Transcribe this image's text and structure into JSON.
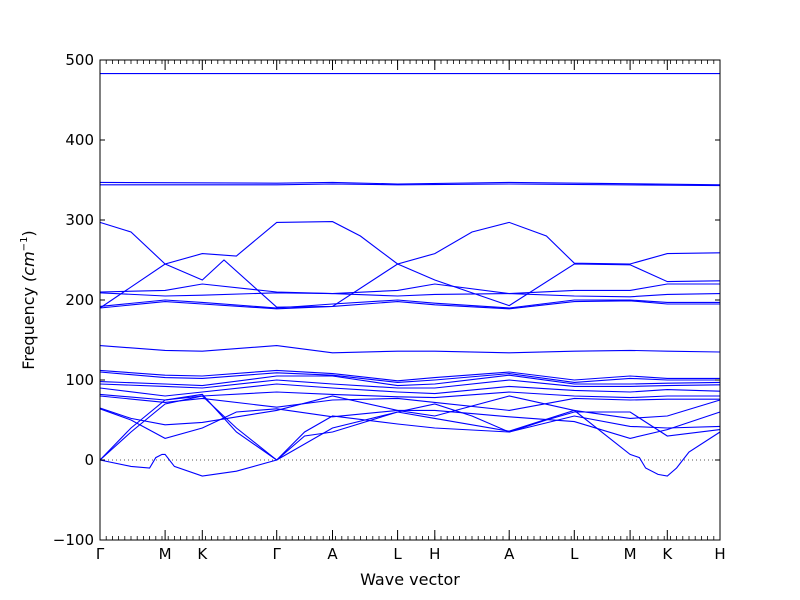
{
  "chart_data": {
    "type": "line",
    "title": "",
    "xlabel": "Wave vector",
    "ylabel_text": "Frequency",
    "ylabel_unit": "(cm",
    "ylabel_exp": "−1",
    "ylabel_close": ")",
    "ylim": [
      -100,
      500
    ],
    "yticks": [
      -100,
      0,
      100,
      200,
      300,
      400,
      500
    ],
    "ytick_labels": [
      "−100",
      "0",
      "100",
      "200",
      "300",
      "400",
      "500"
    ],
    "x_path_points": [
      {
        "label": "Γ",
        "x": 0.0
      },
      {
        "label": "M",
        "x": 0.105
      },
      {
        "label": "K",
        "x": 0.165
      },
      {
        "label": "Γ",
        "x": 0.285
      },
      {
        "label": "A",
        "x": 0.375
      },
      {
        "label": "L",
        "x": 0.48
      },
      {
        "label": "H",
        "x": 0.54
      },
      {
        "label": "A",
        "x": 0.66
      },
      {
        "label": "L",
        "x": 0.765
      },
      {
        "label": "M",
        "x": 0.855
      },
      {
        "label": "K",
        "x": 0.915
      },
      {
        "label": "H",
        "x": 1.0
      }
    ],
    "xlim": [
      0,
      1
    ],
    "zero_line": true,
    "line_color": "#0000ff",
    "series": [
      {
        "x": [
          0,
          1
        ],
        "y": [
          483,
          483
        ]
      },
      {
        "x": [
          0,
          0.285,
          0.375,
          0.48,
          0.66,
          1
        ],
        "y": [
          347,
          346,
          347,
          345,
          347,
          344
        ]
      },
      {
        "x": [
          0,
          0.285,
          0.375,
          0.48,
          0.66,
          1
        ],
        "y": [
          344,
          344,
          345,
          344,
          345,
          343
        ]
      },
      {
        "x": [
          0,
          0.05,
          0.105,
          0.165,
          0.22,
          0.285,
          0.375,
          0.42,
          0.48,
          0.54,
          0.6,
          0.66,
          0.72,
          0.765,
          0.855,
          0.915,
          1
        ],
        "y": [
          297,
          285,
          245,
          258,
          255,
          297,
          298,
          280,
          245,
          258,
          285,
          297,
          280,
          246,
          245,
          258,
          259
        ]
      },
      {
        "x": [
          0,
          0.105,
          0.165,
          0.2,
          0.285,
          0.375,
          0.48,
          0.54,
          0.66,
          0.765,
          0.855,
          0.915,
          1
        ],
        "y": [
          190,
          245,
          225,
          250,
          191,
          192,
          245,
          225,
          193,
          245,
          244,
          223,
          224
        ]
      },
      {
        "x": [
          0,
          0.105,
          0.165,
          0.285,
          0.375,
          0.48,
          0.54,
          0.66,
          0.765,
          0.855,
          0.915,
          1
        ],
        "y": [
          210,
          212,
          220,
          210,
          208,
          212,
          220,
          208,
          212,
          212,
          220,
          220
        ]
      },
      {
        "x": [
          0,
          0.105,
          0.165,
          0.285,
          0.375,
          0.48,
          0.54,
          0.66,
          0.765,
          0.855,
          0.915,
          1
        ],
        "y": [
          209,
          205,
          206,
          209,
          208,
          205,
          207,
          208,
          205,
          204,
          207,
          208
        ]
      },
      {
        "x": [
          0,
          0.105,
          0.165,
          0.285,
          0.375,
          0.48,
          0.54,
          0.66,
          0.765,
          0.855,
          0.915,
          1
        ],
        "y": [
          192,
          200,
          197,
          190,
          195,
          200,
          196,
          190,
          200,
          200,
          197,
          197
        ]
      },
      {
        "x": [
          0,
          0.105,
          0.165,
          0.285,
          0.375,
          0.48,
          0.54,
          0.66,
          0.765,
          0.855,
          0.915,
          1
        ],
        "y": [
          190,
          198,
          195,
          189,
          192,
          198,
          194,
          189,
          198,
          199,
          195,
          195
        ]
      },
      {
        "x": [
          0,
          0.105,
          0.165,
          0.285,
          0.375,
          0.48,
          0.54,
          0.66,
          0.765,
          0.855,
          0.915,
          1
        ],
        "y": [
          143,
          137,
          136,
          143,
          134,
          136,
          136,
          134,
          136,
          137,
          136,
          135
        ]
      },
      {
        "x": [
          0,
          0.105,
          0.165,
          0.285,
          0.375,
          0.48,
          0.54,
          0.66,
          0.765,
          0.855,
          0.915,
          1
        ],
        "y": [
          112,
          106,
          105,
          112,
          108,
          99,
          103,
          110,
          100,
          105,
          102,
          102
        ]
      },
      {
        "x": [
          0,
          0.105,
          0.165,
          0.285,
          0.375,
          0.48,
          0.54,
          0.66,
          0.765,
          0.855,
          0.915,
          1
        ],
        "y": [
          110,
          103,
          102,
          109,
          106,
          97,
          100,
          108,
          97,
          102,
          100,
          100
        ]
      },
      {
        "x": [
          0,
          0.105,
          0.165,
          0.285,
          0.375,
          0.48,
          0.54,
          0.66,
          0.765,
          0.855,
          0.915,
          1
        ],
        "y": [
          98,
          95,
          93,
          105,
          105,
          93,
          95,
          106,
          95,
          95,
          96,
          97
        ]
      },
      {
        "x": [
          0,
          0.105,
          0.165,
          0.285,
          0.375,
          0.48,
          0.54,
          0.66,
          0.765,
          0.855,
          0.915,
          1
        ],
        "y": [
          95,
          92,
          90,
          100,
          95,
          90,
          90,
          100,
          92,
          92,
          93,
          94
        ]
      },
      {
        "x": [
          0,
          0.105,
          0.165,
          0.285,
          0.375,
          0.48,
          0.54,
          0.66,
          0.765,
          0.855,
          0.915,
          1
        ],
        "y": [
          90,
          80,
          85,
          95,
          90,
          85,
          83,
          92,
          87,
          85,
          88,
          86
        ]
      },
      {
        "x": [
          0,
          0.105,
          0.165,
          0.285,
          0.375,
          0.48,
          0.54,
          0.66,
          0.765,
          0.855,
          0.915,
          1
        ],
        "y": [
          82,
          75,
          80,
          85,
          82,
          79,
          78,
          85,
          80,
          78,
          80,
          80
        ]
      },
      {
        "x": [
          0,
          0.105,
          0.165,
          0.285,
          0.375,
          0.48,
          0.54,
          0.66,
          0.765,
          0.855,
          0.915,
          1
        ],
        "y": [
          80,
          72,
          77,
          66,
          75,
          77,
          72,
          62,
          77,
          75,
          76,
          76
        ]
      },
      {
        "x": [
          0,
          0.05,
          0.105,
          0.165,
          0.285,
          0.375,
          0.48,
          0.54,
          0.66,
          0.765,
          0.855,
          0.915,
          1
        ],
        "y": [
          65,
          52,
          44,
          47,
          62,
          80,
          62,
          55,
          80,
          62,
          52,
          55,
          75
        ]
      },
      {
        "x": [
          0,
          0.05,
          0.105,
          0.165,
          0.22,
          0.285,
          0.375,
          0.48,
          0.54,
          0.6,
          0.66,
          0.765,
          0.855,
          0.915,
          1
        ],
        "y": [
          64,
          50,
          27,
          40,
          60,
          64,
          54,
          62,
          62,
          58,
          54,
          48,
          27,
          38,
          60
        ]
      },
      {
        "x": [
          0,
          0.05,
          0.105,
          0.165,
          0.22,
          0.285,
          0.33,
          0.375,
          0.48,
          0.54,
          0.66,
          0.765,
          0.855,
          0.915,
          1
        ],
        "y": [
          0,
          35,
          70,
          80,
          40,
          0,
          35,
          55,
          45,
          40,
          35,
          55,
          42,
          40,
          42
        ]
      },
      {
        "x": [
          0,
          0.05,
          0.105,
          0.165,
          0.22,
          0.285,
          0.33,
          0.375,
          0.48,
          0.54,
          0.6,
          0.66,
          0.72,
          0.765,
          0.855,
          0.915,
          1
        ],
        "y": [
          0,
          40,
          75,
          82,
          35,
          0,
          30,
          35,
          60,
          70,
          55,
          35,
          50,
          60,
          60,
          30,
          38
        ]
      },
      {
        "x": [
          0,
          0.05,
          0.08,
          0.09,
          0.1,
          0.105,
          0.12,
          0.165,
          0.22,
          0.285
        ],
        "y": [
          0,
          -8,
          -10,
          3,
          7,
          7,
          -8,
          -20,
          -14,
          0
        ]
      },
      {
        "x": [
          0.285,
          0.375,
          0.48,
          0.54,
          0.66,
          0.765,
          0.855,
          0.87,
          0.88,
          0.9,
          0.915,
          0.93,
          0.95,
          1
        ],
        "y": [
          0,
          40,
          60,
          52,
          36,
          62,
          7,
          3,
          -10,
          -18,
          -20,
          -10,
          10,
          35
        ]
      }
    ]
  }
}
